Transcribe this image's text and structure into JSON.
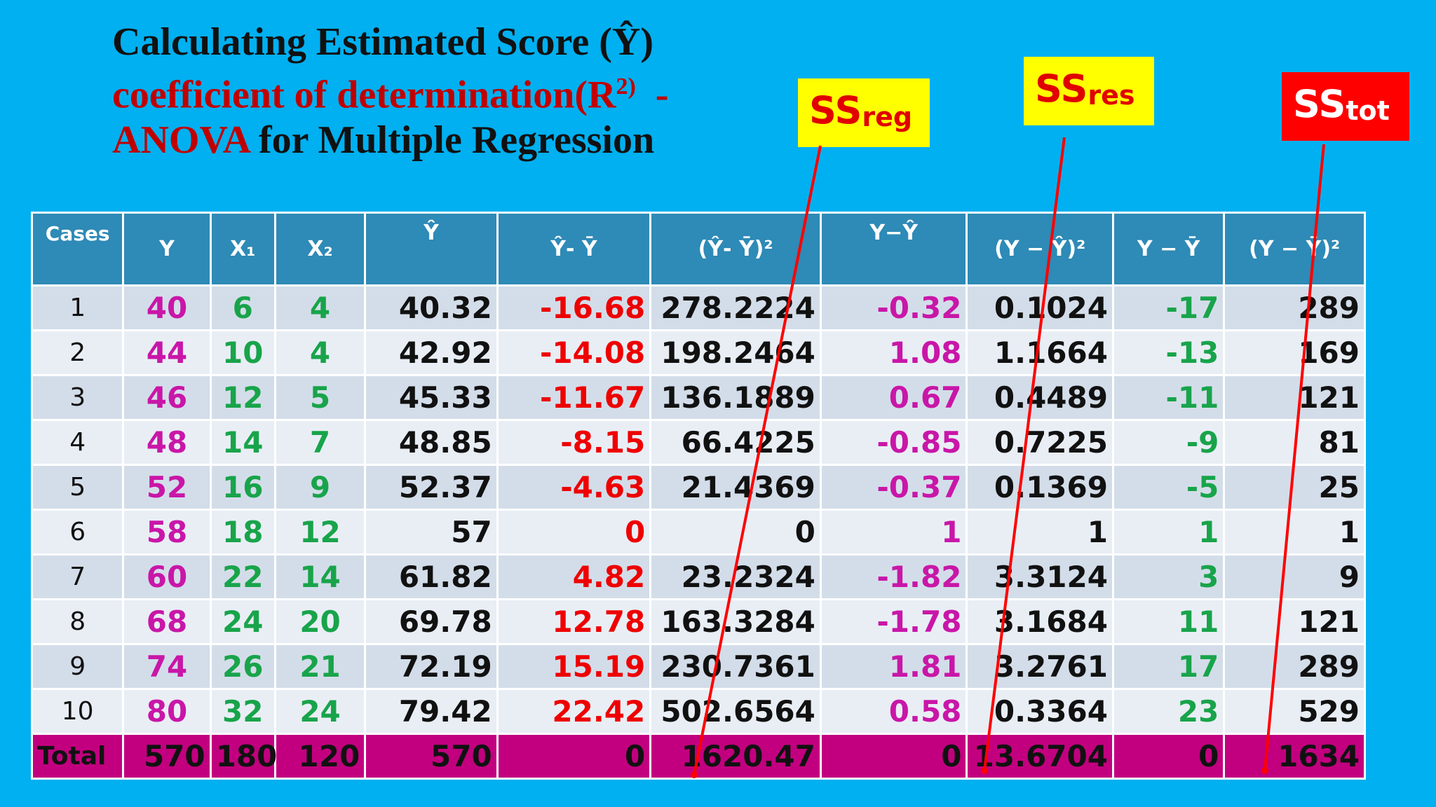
{
  "title": {
    "line1": "Calculating Estimated Score (Ŷ)",
    "line2": "coefficient of determination(R",
    "line2_sup": "2)",
    "line2_dash": "  -",
    "line3_anova": "ANOVA",
    "line3_rest": " for Multiple Regression"
  },
  "labels": {
    "reg": {
      "main": "SS",
      "sub": "reg"
    },
    "res": {
      "main": "SS",
      "sub": "res"
    },
    "tot": {
      "main": "SS",
      "sub": "tot"
    }
  },
  "colors": {
    "background": "#00b0f0",
    "header": "#2e8ab6",
    "total_row": "#c2007f",
    "magenta": "#c916a8",
    "green": "#18a44a",
    "red": "#ee0000"
  },
  "table": {
    "headers": [
      "Cases",
      "Y",
      "X₁",
      "X₂",
      "Ŷ",
      "Ŷ- Ȳ",
      "(Ŷ- Ȳ)²",
      "Y−Ŷ",
      "(Y − Ŷ)²",
      "Y − Ȳ",
      "(Y − Ȳ)²"
    ],
    "rows": [
      [
        "1",
        "40",
        "6",
        "4",
        "40.32",
        "-16.68",
        "278.2224",
        "-0.32",
        "0.1024",
        "-17",
        "289"
      ],
      [
        "2",
        "44",
        "10",
        "4",
        "42.92",
        "-14.08",
        "198.2464",
        "1.08",
        "1.1664",
        "-13",
        "169"
      ],
      [
        "3",
        "46",
        "12",
        "5",
        "45.33",
        "-11.67",
        "136.1889",
        "0.67",
        "0.4489",
        "-11",
        "121"
      ],
      [
        "4",
        "48",
        "14",
        "7",
        "48.85",
        "-8.15",
        "66.4225",
        "-0.85",
        "0.7225",
        "-9",
        "81"
      ],
      [
        "5",
        "52",
        "16",
        "9",
        "52.37",
        "-4.63",
        "21.4369",
        "-0.37",
        "0.1369",
        "-5",
        "25"
      ],
      [
        "6",
        "58",
        "18",
        "12",
        "57",
        "0",
        "0",
        "1",
        "1",
        "1",
        "1"
      ],
      [
        "7",
        "60",
        "22",
        "14",
        "61.82",
        "4.82",
        "23.2324",
        "-1.82",
        "3.3124",
        "3",
        "9"
      ],
      [
        "8",
        "68",
        "24",
        "20",
        "69.78",
        "12.78",
        "163.3284",
        "-1.78",
        "3.1684",
        "11",
        "121"
      ],
      [
        "9",
        "74",
        "26",
        "21",
        "72.19",
        "15.19",
        "230.7361",
        "1.81",
        "3.2761",
        "17",
        "289"
      ],
      [
        "10",
        "80",
        "32",
        "24",
        "79.42",
        "22.42",
        "502.6564",
        "0.58",
        "0.3364",
        "23",
        "529"
      ]
    ],
    "total": [
      "Total",
      "570",
      "180",
      "120",
      "570",
      "0",
      "1620.47",
      "0",
      "13.6704",
      "0",
      "1634"
    ]
  }
}
